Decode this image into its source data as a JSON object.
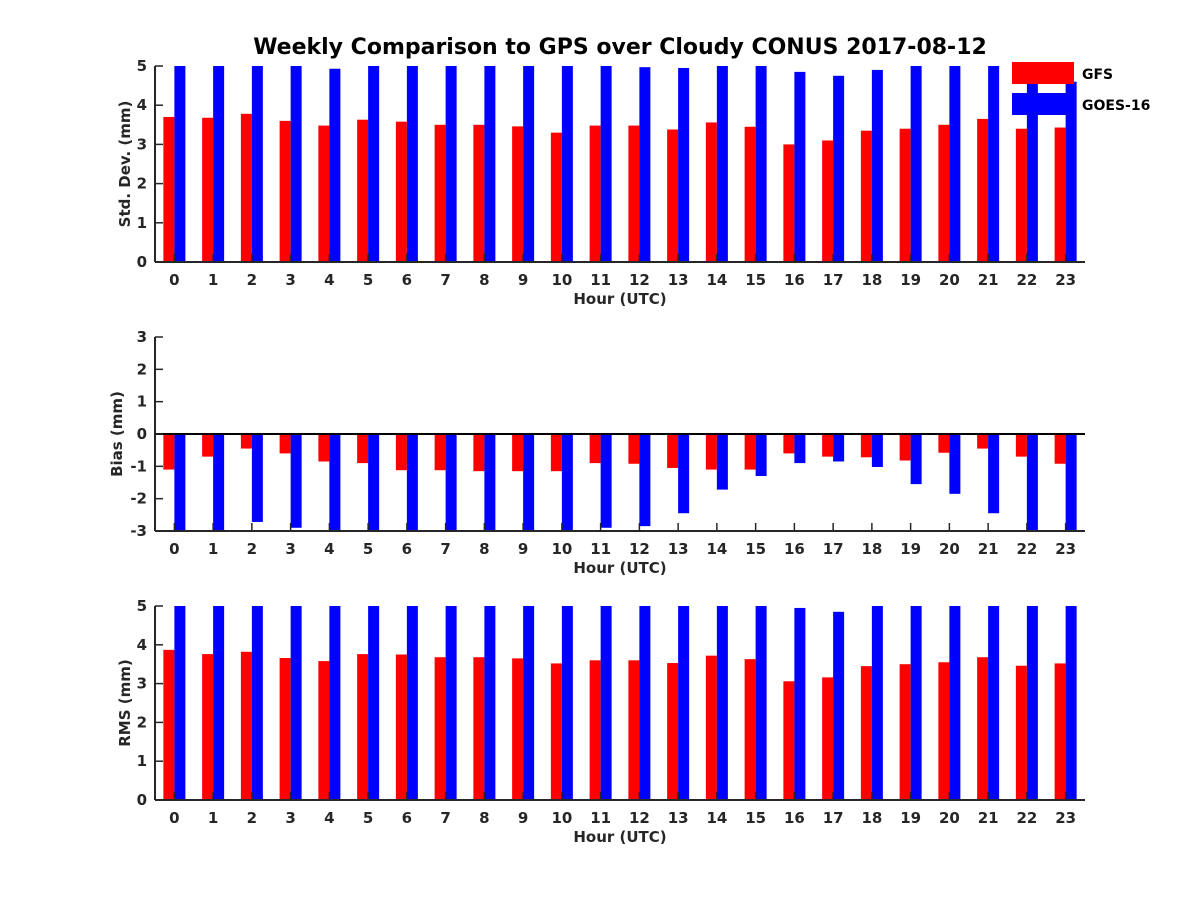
{
  "title": "Weekly Comparison to GPS over Cloudy CONUS 2017-08-12",
  "colors": {
    "GFS": "#ff0000",
    "GOES-16": "#0000ff",
    "axis": "#262626"
  },
  "legend": {
    "placement": "top-right",
    "entries": [
      "GFS",
      "GOES-16"
    ]
  },
  "chart_data": [
    {
      "type": "bar",
      "categories": [
        "0",
        "1",
        "2",
        "3",
        "4",
        "5",
        "6",
        "7",
        "8",
        "9",
        "10",
        "11",
        "12",
        "13",
        "14",
        "15",
        "16",
        "17",
        "18",
        "19",
        "20",
        "21",
        "22",
        "23"
      ],
      "xlabel": "Hour (UTC)",
      "ylabel": "Std. Dev. (mm)",
      "ylim": [
        0,
        5
      ],
      "yticks": [
        "0",
        "1",
        "2",
        "3",
        "4",
        "5"
      ],
      "grid": false,
      "series": [
        {
          "name": "GFS",
          "values": [
            3.7,
            3.68,
            3.78,
            3.6,
            3.48,
            3.63,
            3.58,
            3.5,
            3.5,
            3.46,
            3.3,
            3.48,
            3.48,
            3.38,
            3.56,
            3.45,
            3.0,
            3.1,
            3.35,
            3.4,
            3.5,
            3.65,
            3.4,
            3.43
          ]
        },
        {
          "name": "GOES-16",
          "values": [
            5.0,
            5.0,
            5.0,
            5.0,
            4.93,
            5.0,
            5.0,
            5.0,
            5.0,
            5.0,
            5.0,
            5.0,
            4.97,
            4.95,
            5.0,
            5.0,
            4.85,
            4.75,
            4.9,
            5.0,
            5.0,
            5.0,
            5.0,
            4.6
          ]
        }
      ]
    },
    {
      "type": "bar",
      "categories": [
        "0",
        "1",
        "2",
        "3",
        "4",
        "5",
        "6",
        "7",
        "8",
        "9",
        "10",
        "11",
        "12",
        "13",
        "14",
        "15",
        "16",
        "17",
        "18",
        "19",
        "20",
        "21",
        "22",
        "23"
      ],
      "xlabel": "Hour (UTC)",
      "ylabel": "Bias (mm)",
      "ylim": [
        -3,
        3
      ],
      "yticks": [
        "-3",
        "-2",
        "-1",
        "0",
        "1",
        "2",
        "3"
      ],
      "grid": false,
      "series": [
        {
          "name": "GFS",
          "values": [
            -1.1,
            -0.7,
            -0.45,
            -0.6,
            -0.85,
            -0.9,
            -1.12,
            -1.12,
            -1.15,
            -1.15,
            -1.15,
            -0.9,
            -0.92,
            -1.05,
            -1.1,
            -1.1,
            -0.6,
            -0.7,
            -0.72,
            -0.82,
            -0.58,
            -0.45,
            -0.7,
            -0.92
          ]
        },
        {
          "name": "GOES-16",
          "values": [
            -3.0,
            -3.0,
            -2.72,
            -2.9,
            -3.0,
            -3.0,
            -3.0,
            -3.0,
            -3.0,
            -3.0,
            -3.0,
            -2.9,
            -2.85,
            -2.45,
            -1.72,
            -1.3,
            -0.9,
            -0.85,
            -1.02,
            -1.55,
            -1.85,
            -2.45,
            -3.0,
            -3.0
          ]
        }
      ]
    },
    {
      "type": "bar",
      "categories": [
        "0",
        "1",
        "2",
        "3",
        "4",
        "5",
        "6",
        "7",
        "8",
        "9",
        "10",
        "11",
        "12",
        "13",
        "14",
        "15",
        "16",
        "17",
        "18",
        "19",
        "20",
        "21",
        "22",
        "23"
      ],
      "xlabel": "Hour (UTC)",
      "ylabel": "RMS (mm)",
      "ylim": [
        0,
        5
      ],
      "yticks": [
        "0",
        "1",
        "2",
        "3",
        "4",
        "5"
      ],
      "grid": false,
      "series": [
        {
          "name": "GFS",
          "values": [
            3.87,
            3.76,
            3.82,
            3.66,
            3.58,
            3.76,
            3.75,
            3.68,
            3.68,
            3.65,
            3.52,
            3.6,
            3.6,
            3.53,
            3.72,
            3.63,
            3.06,
            3.16,
            3.45,
            3.5,
            3.55,
            3.68,
            3.46,
            3.52
          ]
        },
        {
          "name": "GOES-16",
          "values": [
            5.0,
            5.0,
            5.0,
            5.0,
            5.0,
            5.0,
            5.0,
            5.0,
            5.0,
            5.0,
            5.0,
            5.0,
            5.0,
            5.0,
            5.0,
            5.0,
            4.95,
            4.85,
            5.0,
            5.0,
            5.0,
            5.0,
            5.0,
            5.0
          ]
        }
      ]
    }
  ]
}
